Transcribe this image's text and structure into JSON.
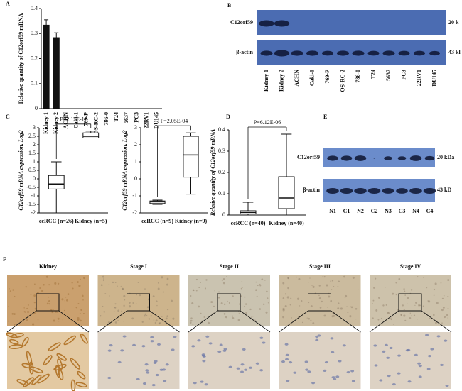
{
  "chart_data": [
    {
      "type": "bar",
      "panel_label": "A",
      "y_label": "Relative quantity of C12orf59 mRNA",
      "categories": [
        "Kidney 1",
        "Kidney 2",
        "ACHN",
        "Caki-1",
        "769-P",
        "OS-RC-2",
        "786-0",
        "T24",
        "5637",
        "PC3",
        "22RV1",
        "DU145"
      ],
      "values": [
        0.335,
        0.285,
        0,
        0,
        0,
        0,
        0,
        0,
        0,
        0,
        0,
        0
      ],
      "errors": [
        0.02,
        0.018,
        null,
        null,
        null,
        null,
        null,
        null,
        null,
        null,
        null,
        null
      ],
      "color": "#111111",
      "ylim": [
        0,
        0.4
      ],
      "yticks": [
        0,
        0.1,
        0.2,
        0.3,
        0.4
      ]
    },
    {
      "type": "box",
      "panel_label": "C",
      "y_label": "C12orf59 mRNA expression. Log2",
      "categories": [
        "ccRCC (n=26)",
        "Kidney (n=5)"
      ],
      "boxes": [
        {
          "min": -2,
          "q1": -0.6,
          "median": -0.3,
          "q3": 0.2,
          "max": 1
        },
        {
          "min": 2.4,
          "q1": 2.4,
          "median": 2.5,
          "q3": 2.7,
          "max": 2.8
        }
      ],
      "annotation": "P=2.11E-17",
      "ylim": [
        -2,
        3
      ],
      "yticks": [
        -2,
        -1.5,
        -1,
        -0.5,
        0,
        0.5,
        1,
        1.5,
        2,
        2.5,
        3
      ]
    },
    {
      "type": "box",
      "y_label": "C12orf59 mRNA expression. Log2",
      "categories": [
        "ccRCC (n=9)",
        "Kidney (n=9)"
      ],
      "boxes": [
        {
          "min": -1.5,
          "q1": -1.45,
          "median": -1.35,
          "q3": -1.3,
          "max": -1.25
        },
        {
          "min": -0.9,
          "q1": 0.1,
          "median": 1.4,
          "q3": 2.5,
          "max": 2.7
        }
      ],
      "annotation": "P=2.05E-04",
      "ylim": [
        -2,
        3
      ],
      "yticks": [
        -2,
        -1,
        0,
        1,
        2,
        3
      ]
    },
    {
      "type": "box",
      "panel_label": "D",
      "y_label": "Relative quantity of C12orf59 mRNA",
      "categories": [
        "ccRCC (n=40)",
        "Kidney (n=40)"
      ],
      "boxes": [
        {
          "min": 0,
          "q1": 0.005,
          "median": 0.012,
          "q3": 0.02,
          "max": 0.06
        },
        {
          "min": 0,
          "q1": 0.03,
          "median": 0.08,
          "q3": 0.18,
          "max": 0.38
        }
      ],
      "annotation": "P=6.12E-06",
      "ylim": [
        0,
        0.4
      ],
      "yticks": [
        0,
        0.1,
        0.2,
        0.3,
        0.4
      ]
    }
  ],
  "blots": [
    {
      "panel_label": "B",
      "rows": [
        {
          "label": "C12orf59",
          "size": "20 k"
        },
        {
          "label": "β-actin",
          "size": "43 kl"
        }
      ],
      "lanes": [
        "Kidney 1",
        "Kidney 2",
        "ACHN",
        "Caki-1",
        "769-P",
        "OS-RC-2",
        "786-0",
        "T24",
        "5637",
        "PC3",
        "22RV1",
        "DU145"
      ]
    },
    {
      "panel_label": "E",
      "rows": [
        {
          "label": "C12orf59",
          "size": "20 kDa"
        },
        {
          "label": "β-actin",
          "size": "43 kD"
        }
      ],
      "lanes": [
        "N1",
        "C1",
        "N2",
        "C2",
        "N3",
        "C3",
        "N4",
        "C4"
      ]
    }
  ],
  "histology": {
    "panel_label": "F",
    "columns": [
      "Kidney",
      "Stage I",
      "Stage II",
      "Stage III",
      "Stage IV"
    ]
  }
}
